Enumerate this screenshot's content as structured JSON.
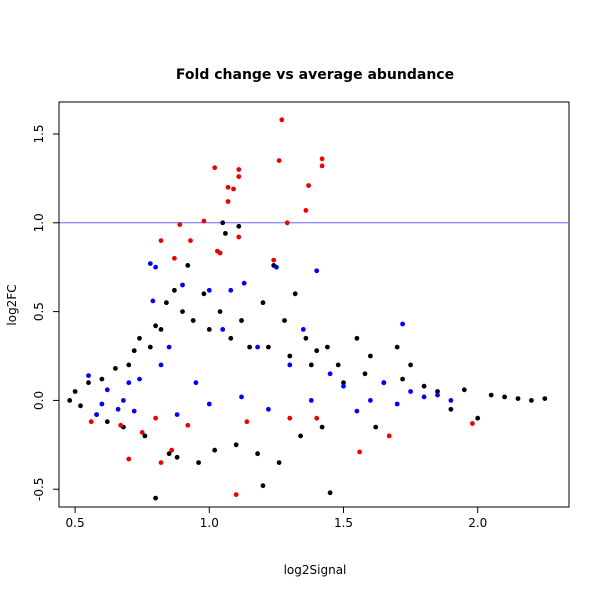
{
  "chart_data": {
    "type": "scatter",
    "title": "Fold change vs average abundance",
    "xlabel": "log2Signal",
    "ylabel": "log2FC",
    "xlim": [
      0.44,
      2.34
    ],
    "ylim": [
      -0.6,
      1.68
    ],
    "xticks": [
      0.5,
      1.0,
      1.5,
      2.0
    ],
    "xtick_labels": [
      "0.5",
      "1.0",
      "1.5",
      "2.0"
    ],
    "yticks": [
      -0.5,
      0.0,
      0.5,
      1.0,
      1.5
    ],
    "ytick_labels": [
      "-0.5",
      "0.0",
      "0.5",
      "1.0",
      "1.5"
    ],
    "grid": false,
    "reference_line": {
      "y": 1.0,
      "color": "#6666ff"
    },
    "series": [
      {
        "color": "#000000",
        "points": [
          [
            0.48,
            0.0
          ],
          [
            0.5,
            0.05
          ],
          [
            0.52,
            -0.03
          ],
          [
            0.55,
            0.1
          ],
          [
            0.58,
            -0.08
          ],
          [
            0.6,
            0.12
          ],
          [
            0.62,
            -0.12
          ],
          [
            0.65,
            0.18
          ],
          [
            0.68,
            -0.15
          ],
          [
            0.7,
            0.2
          ],
          [
            0.72,
            0.28
          ],
          [
            0.74,
            0.35
          ],
          [
            0.76,
            -0.2
          ],
          [
            0.78,
            0.3
          ],
          [
            0.8,
            0.42
          ],
          [
            0.8,
            -0.55
          ],
          [
            0.82,
            0.4
          ],
          [
            0.84,
            0.55
          ],
          [
            0.85,
            -0.3
          ],
          [
            0.87,
            0.62
          ],
          [
            0.88,
            -0.32
          ],
          [
            0.9,
            0.5
          ],
          [
            0.92,
            0.76
          ],
          [
            0.94,
            0.45
          ],
          [
            0.96,
            -0.35
          ],
          [
            0.98,
            0.6
          ],
          [
            1.0,
            0.4
          ],
          [
            1.02,
            -0.28
          ],
          [
            1.04,
            0.5
          ],
          [
            1.06,
            0.94
          ],
          [
            1.08,
            0.35
          ],
          [
            1.1,
            -0.25
          ],
          [
            1.12,
            0.45
          ],
          [
            1.15,
            0.3
          ],
          [
            1.18,
            -0.3
          ],
          [
            1.2,
            0.55
          ],
          [
            1.22,
            0.3
          ],
          [
            1.24,
            0.76
          ],
          [
            1.26,
            -0.35
          ],
          [
            1.28,
            0.45
          ],
          [
            1.3,
            0.25
          ],
          [
            1.32,
            0.6
          ],
          [
            1.34,
            -0.2
          ],
          [
            1.36,
            0.35
          ],
          [
            1.38,
            0.2
          ],
          [
            1.4,
            0.28
          ],
          [
            1.42,
            -0.15
          ],
          [
            1.44,
            0.3
          ],
          [
            1.45,
            -0.52
          ],
          [
            1.48,
            0.2
          ],
          [
            1.5,
            0.1
          ],
          [
            1.55,
            0.35
          ],
          [
            1.58,
            0.15
          ],
          [
            1.6,
            0.25
          ],
          [
            1.62,
            -0.15
          ],
          [
            1.65,
            0.1
          ],
          [
            1.7,
            0.3
          ],
          [
            1.72,
            0.12
          ],
          [
            1.75,
            0.2
          ],
          [
            1.8,
            0.08
          ],
          [
            1.85,
            0.05
          ],
          [
            1.9,
            -0.05
          ],
          [
            1.95,
            0.06
          ],
          [
            2.0,
            -0.1
          ],
          [
            2.05,
            0.03
          ],
          [
            2.1,
            0.02
          ],
          [
            2.15,
            0.01
          ],
          [
            2.2,
            0.0
          ],
          [
            2.25,
            0.01
          ],
          [
            1.05,
            1.0
          ],
          [
            1.11,
            0.98
          ],
          [
            1.2,
            -0.48
          ]
        ]
      },
      {
        "color": "#0000ff",
        "points": [
          [
            0.55,
            0.14
          ],
          [
            0.58,
            -0.08
          ],
          [
            0.62,
            0.06
          ],
          [
            0.66,
            -0.05
          ],
          [
            0.7,
            0.1
          ],
          [
            0.74,
            0.12
          ],
          [
            0.78,
            0.77
          ],
          [
            0.79,
            0.56
          ],
          [
            0.8,
            0.75
          ],
          [
            0.82,
            0.2
          ],
          [
            0.85,
            0.3
          ],
          [
            0.9,
            0.65
          ],
          [
            0.95,
            0.1
          ],
          [
            1.0,
            0.62
          ],
          [
            1.05,
            0.4
          ],
          [
            1.08,
            0.62
          ],
          [
            1.13,
            0.66
          ],
          [
            1.18,
            0.3
          ],
          [
            1.25,
            0.75
          ],
          [
            1.3,
            0.2
          ],
          [
            1.35,
            0.4
          ],
          [
            1.4,
            0.73
          ],
          [
            1.45,
            0.15
          ],
          [
            1.5,
            0.08
          ],
          [
            1.6,
            0.0
          ],
          [
            1.65,
            0.1
          ],
          [
            1.72,
            0.43
          ],
          [
            1.75,
            0.05
          ],
          [
            1.8,
            0.02
          ],
          [
            1.85,
            0.03
          ],
          [
            1.9,
            0.0
          ],
          [
            0.6,
            -0.02
          ],
          [
            0.68,
            0.0
          ],
          [
            0.72,
            -0.06
          ],
          [
            0.88,
            -0.08
          ],
          [
            1.0,
            -0.02
          ],
          [
            1.12,
            0.02
          ],
          [
            1.22,
            -0.05
          ],
          [
            1.38,
            0.0
          ],
          [
            1.55,
            -0.06
          ],
          [
            1.7,
            -0.02
          ]
        ]
      },
      {
        "color": "#ee0000",
        "points": [
          [
            0.82,
            0.9
          ],
          [
            0.87,
            0.8
          ],
          [
            0.89,
            0.99
          ],
          [
            0.93,
            0.9
          ],
          [
            0.98,
            1.01
          ],
          [
            1.02,
            1.31
          ],
          [
            1.03,
            0.84
          ],
          [
            1.04,
            0.83
          ],
          [
            1.07,
            1.2
          ],
          [
            1.07,
            1.12
          ],
          [
            1.09,
            1.19
          ],
          [
            1.11,
            1.26
          ],
          [
            1.11,
            1.3
          ],
          [
            1.11,
            0.92
          ],
          [
            1.24,
            0.79
          ],
          [
            1.26,
            1.35
          ],
          [
            1.27,
            1.58
          ],
          [
            1.29,
            1.0
          ],
          [
            1.36,
            1.07
          ],
          [
            1.37,
            1.21
          ],
          [
            1.42,
            1.32
          ],
          [
            1.42,
            1.36
          ],
          [
            1.1,
            -0.53
          ],
          [
            1.56,
            -0.29
          ],
          [
            1.67,
            -0.2
          ],
          [
            1.98,
            -0.13
          ],
          [
            0.67,
            -0.14
          ],
          [
            0.75,
            -0.18
          ],
          [
            0.8,
            -0.1
          ],
          [
            0.82,
            -0.35
          ],
          [
            0.86,
            -0.28
          ],
          [
            0.92,
            -0.14
          ],
          [
            1.14,
            -0.12
          ],
          [
            1.3,
            -0.1
          ],
          [
            1.4,
            -0.1
          ],
          [
            0.56,
            -0.12
          ],
          [
            0.7,
            -0.33
          ]
        ]
      }
    ]
  }
}
